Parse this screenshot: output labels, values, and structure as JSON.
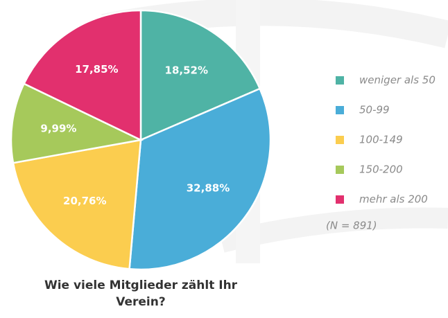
{
  "chart_data": {
    "type": "pie",
    "title": "Wie viele Mitglieder zählt Ihr Verein?",
    "categories": [
      "weniger als 50",
      "50-99",
      "100-149",
      "150-200",
      "mehr als 200"
    ],
    "values": [
      18.52,
      32.88,
      20.76,
      9.99,
      17.85
    ],
    "value_labels": [
      "18,52%",
      "32,88%",
      "20,76%",
      "9,99%",
      "17,85%"
    ],
    "colors": [
      "#4fb3a5",
      "#4aadd8",
      "#fbcd4f",
      "#a6c95b",
      "#e2306e"
    ],
    "note": "(N = 891)"
  }
}
